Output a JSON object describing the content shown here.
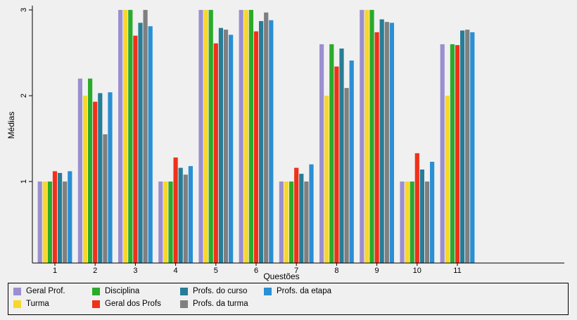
{
  "chart_data": {
    "type": "bar",
    "xlabel": "Questões",
    "ylabel": "Médias",
    "ylim": [
      0.05,
      3.05
    ],
    "yticks": [
      1,
      2,
      3
    ],
    "categories": [
      "1",
      "2",
      "3",
      "4",
      "5",
      "6",
      "7",
      "8",
      "9",
      "10",
      "11"
    ],
    "legend_position": "bottom",
    "series": [
      {
        "name": "Geral Prof.",
        "color": "#9b8fd0",
        "values": [
          1,
          2.2,
          3,
          1,
          3,
          3,
          1,
          2.6,
          3,
          1,
          2.6
        ]
      },
      {
        "name": "Turma",
        "color": "#f7d72a",
        "values": [
          1,
          2,
          3,
          1,
          3,
          3,
          1,
          2,
          3,
          1,
          2
        ]
      },
      {
        "name": "Disciplina",
        "color": "#2aab2a",
        "values": [
          1,
          2.2,
          3,
          1,
          3,
          3,
          1,
          2.6,
          3,
          1,
          2.6
        ]
      },
      {
        "name": "Geral dos Profs",
        "color": "#f0311a",
        "values": [
          1.12,
          1.93,
          2.7,
          1.28,
          2.61,
          2.75,
          1.16,
          2.34,
          2.74,
          1.33,
          2.59
        ]
      },
      {
        "name": "Profs. do curso",
        "color": "#277d96",
        "values": [
          1.1,
          2.03,
          2.85,
          1.16,
          2.79,
          2.87,
          1.09,
          2.55,
          2.89,
          1.14,
          2.76
        ]
      },
      {
        "name": "Profs. da turma",
        "color": "#7f7f7f",
        "values": [
          1,
          1.55,
          3,
          1.08,
          2.77,
          2.97,
          1,
          2.09,
          2.86,
          1,
          2.77
        ]
      },
      {
        "name": "Profs. da etapa",
        "color": "#2a8fd3",
        "values": [
          1.12,
          2.04,
          2.81,
          1.18,
          2.71,
          2.88,
          1.2,
          2.41,
          2.85,
          1.23,
          2.74
        ]
      }
    ]
  }
}
